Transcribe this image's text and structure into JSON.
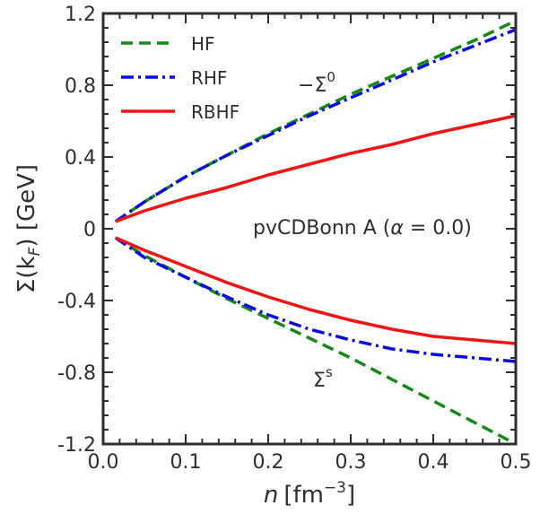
{
  "chart_data": {
    "type": "line",
    "xlabel_var": "n",
    "xlabel_unit": "[fm",
    "xlabel_exp": "−3",
    "xlabel_close": "]",
    "ylabel_pre": "Σ(k",
    "ylabel_sub": "F",
    "ylabel_post": ") [GeV]",
    "xlim": [
      0.0,
      0.5
    ],
    "ylim": [
      -1.2,
      1.2
    ],
    "x_ticks": [
      0.0,
      0.1,
      0.2,
      0.3,
      0.4,
      0.5
    ],
    "x_tick_labels": [
      "0.0",
      "0.1",
      "0.2",
      "0.3",
      "0.4",
      "0.5"
    ],
    "y_ticks": [
      -1.2,
      -0.8,
      -0.4,
      0.0,
      0.4,
      0.8,
      1.2
    ],
    "y_tick_labels": [
      "-1.2",
      "-0.8",
      "-0.4",
      "0",
      "0.4",
      "0.8",
      "1.2"
    ],
    "legend": {
      "position": "top-left",
      "entries": [
        "HF",
        "RHF",
        "RBHF"
      ]
    },
    "annotations": {
      "vector_main": "−Σ",
      "vector_sup": "0",
      "scalar_main": "Σ",
      "scalar_sup": "s",
      "model_pre": "pvCDBonn A (",
      "model_alpha": "α",
      "model_post": " = 0.0)"
    },
    "series": [
      {
        "name": "HF",
        "component": "-Σ0",
        "color": "#138a13",
        "dash": "dashed",
        "x": [
          0.015,
          0.05,
          0.1,
          0.15,
          0.2,
          0.25,
          0.3,
          0.35,
          0.4,
          0.45,
          0.5
        ],
        "y": [
          0.04,
          0.15,
          0.29,
          0.41,
          0.53,
          0.64,
          0.75,
          0.85,
          0.95,
          1.05,
          1.16
        ]
      },
      {
        "name": "RHF",
        "component": "-Σ0",
        "color": "#0a0ae6",
        "dash": "dashdot",
        "x": [
          0.015,
          0.05,
          0.1,
          0.15,
          0.2,
          0.25,
          0.3,
          0.35,
          0.4,
          0.45,
          0.5
        ],
        "y": [
          0.04,
          0.15,
          0.29,
          0.41,
          0.52,
          0.63,
          0.73,
          0.83,
          0.93,
          1.02,
          1.11
        ]
      },
      {
        "name": "RBHF",
        "component": "-Σ0",
        "color": "#f01414",
        "dash": "solid",
        "x": [
          0.015,
          0.05,
          0.1,
          0.15,
          0.2,
          0.25,
          0.3,
          0.35,
          0.4,
          0.45,
          0.5
        ],
        "y": [
          0.04,
          0.1,
          0.17,
          0.23,
          0.3,
          0.36,
          0.42,
          0.47,
          0.53,
          0.58,
          0.63
        ]
      },
      {
        "name": "HF",
        "component": "Σs",
        "color": "#138a13",
        "dash": "dashed",
        "x": [
          0.015,
          0.05,
          0.1,
          0.15,
          0.2,
          0.25,
          0.3,
          0.35,
          0.4,
          0.45,
          0.5
        ],
        "y": [
          -0.05,
          -0.15,
          -0.27,
          -0.39,
          -0.5,
          -0.61,
          -0.72,
          -0.84,
          -0.96,
          -1.08,
          -1.2
        ]
      },
      {
        "name": "RHF",
        "component": "Σs",
        "color": "#0a0ae6",
        "dash": "dashdot",
        "x": [
          0.015,
          0.05,
          0.1,
          0.15,
          0.2,
          0.25,
          0.3,
          0.35,
          0.4,
          0.45,
          0.5
        ],
        "y": [
          -0.05,
          -0.16,
          -0.27,
          -0.38,
          -0.48,
          -0.56,
          -0.62,
          -0.67,
          -0.7,
          -0.72,
          -0.74
        ]
      },
      {
        "name": "RBHF",
        "component": "Σs",
        "color": "#f01414",
        "dash": "solid",
        "x": [
          0.015,
          0.05,
          0.1,
          0.15,
          0.2,
          0.25,
          0.3,
          0.35,
          0.4,
          0.45,
          0.5
        ],
        "y": [
          -0.05,
          -0.12,
          -0.21,
          -0.3,
          -0.38,
          -0.45,
          -0.51,
          -0.56,
          -0.6,
          -0.62,
          -0.64
        ]
      }
    ]
  }
}
